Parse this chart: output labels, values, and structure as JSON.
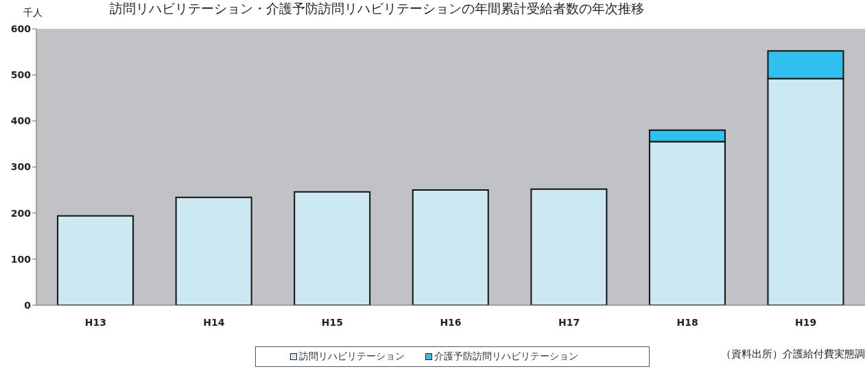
{
  "chart_data": {
    "type": "bar",
    "title": "訪問リハビリテーション・介護予防訪問リハビリテーションの年間累計受給者数の年次推移",
    "ylabel": "千人",
    "categories": [
      "H13",
      "H14",
      "H15",
      "H16",
      "H17",
      "H18",
      "H19"
    ],
    "stacked": true,
    "series": [
      {
        "name": "訪問リハビリテーション",
        "color": "#cce8f2",
        "values": [
          194,
          234,
          246,
          250,
          252,
          355,
          492
        ]
      },
      {
        "name": "介護予防訪問リハビリテーション",
        "color": "#30c0ee",
        "values": [
          null,
          null,
          null,
          null,
          null,
          25,
          60
        ]
      }
    ],
    "ylim": [
      0,
      600
    ],
    "yticks": [
      0,
      100,
      200,
      300,
      400,
      500,
      600
    ],
    "grid": false,
    "legend": "bottom",
    "annotations": [
      "（資料出所）介護給付費実態調"
    ]
  }
}
